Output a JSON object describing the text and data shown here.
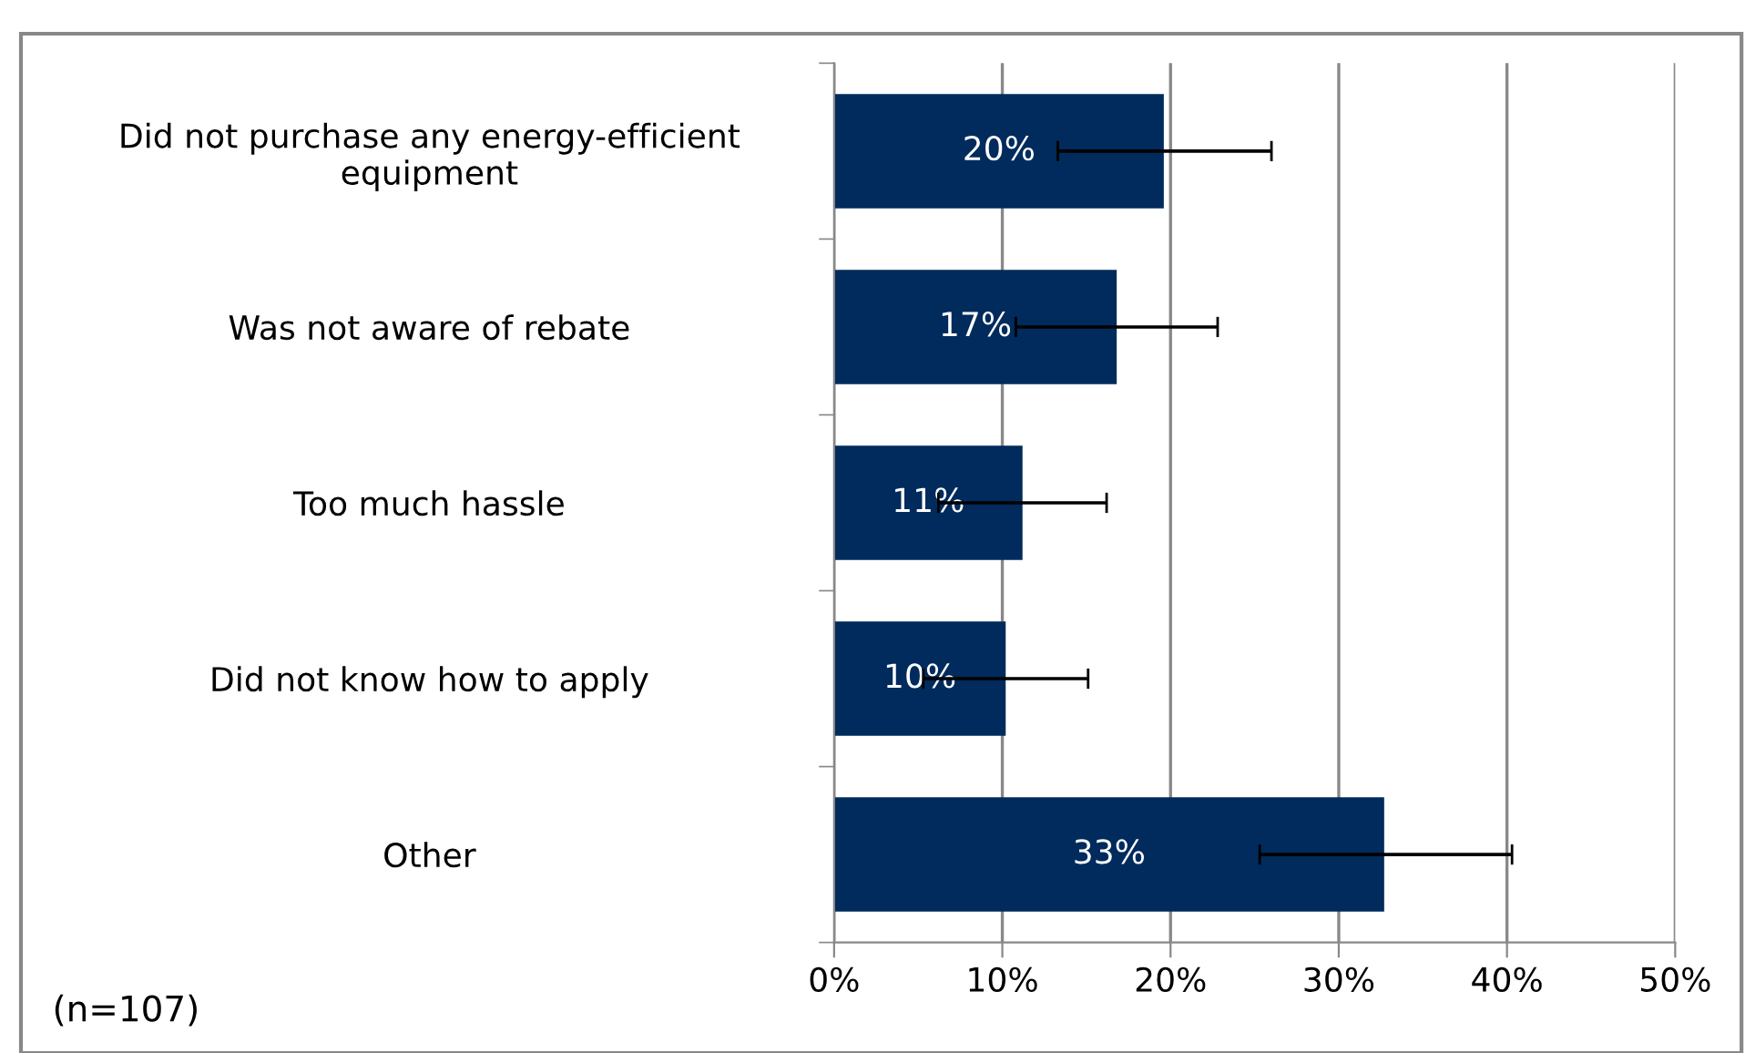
{
  "chart_data": {
    "type": "bar",
    "orientation": "horizontal",
    "categories": [
      "Did not purchase any energy-efficient\nequipment",
      "Was not aware of rebate",
      "Too much hassle",
      "Did not know how to apply",
      "Other"
    ],
    "values": [
      19.6,
      16.8,
      11.2,
      10.2,
      32.7
    ],
    "value_labels": [
      "20%",
      "17%",
      "11%",
      "10%",
      "33%"
    ],
    "errors": [
      [
        13.3,
        26.0
      ],
      [
        10.8,
        22.8
      ],
      [
        6.2,
        16.2
      ],
      [
        5.3,
        15.1
      ],
      [
        25.3,
        40.3
      ]
    ],
    "color": "#002b5c",
    "xlim": [
      0,
      50
    ],
    "xticks": [
      {
        "value": 0,
        "label": "0%"
      },
      {
        "value": 10,
        "label": "10%"
      },
      {
        "value": 20,
        "label": "20%"
      },
      {
        "value": 30,
        "label": "30%"
      },
      {
        "value": 40,
        "label": "40%"
      },
      {
        "value": 50,
        "label": "50%"
      }
    ],
    "grid": "x",
    "annotations": [
      "(n=107)"
    ]
  }
}
